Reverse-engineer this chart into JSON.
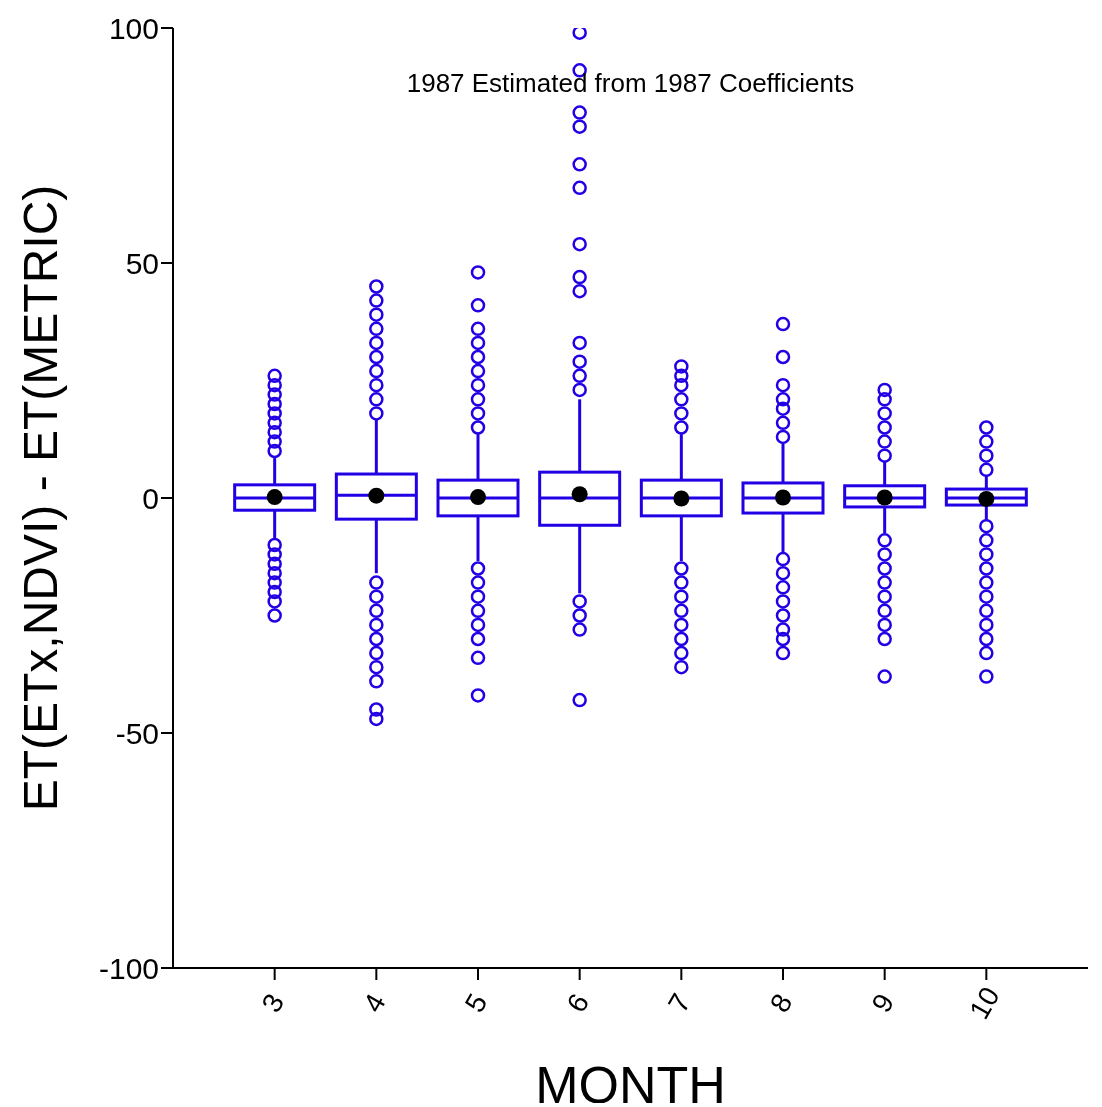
{
  "chart_data": {
    "type": "box",
    "xlabel": "MONTH",
    "ylabel": "ET(ETx,NDVI) - ET(METRIC)",
    "annotations": [
      "1987 Estimated from 1987 Coefficients"
    ],
    "categories": [
      "3",
      "4",
      "5",
      "6",
      "7",
      "8",
      "9",
      "10"
    ],
    "ylim": [
      -100,
      100
    ],
    "yticks": [
      -100,
      -50,
      0,
      50,
      100
    ],
    "marker": "circle",
    "series": [
      {
        "color": "#2200e6",
        "boxes": [
          {
            "low": -8.5,
            "q1": -2.6,
            "median": 0,
            "q3": 2.8,
            "high": 8.5,
            "mean": 0.2,
            "outliers": [
              10,
              12,
              14,
              16,
              18,
              20,
              22,
              24,
              26,
              -10,
              -12,
              -14,
              -16,
              -18,
              -20,
              -22,
              -25
            ]
          },
          {
            "low": -16,
            "q1": -4.5,
            "median": 0.6,
            "q3": 5.1,
            "high": 16.8,
            "mean": 0.5,
            "outliers": [
              18,
              21,
              24,
              27,
              30,
              33,
              36,
              39,
              42,
              45,
              -18,
              -21,
              -24,
              -27,
              -30,
              -33,
              -36,
              -39,
              -45,
              -47
            ]
          },
          {
            "low": -13.4,
            "q1": -3.8,
            "median": 0,
            "q3": 3.8,
            "high": 13.6,
            "mean": 0.2,
            "outliers": [
              15,
              18,
              21,
              24,
              27,
              30,
              33,
              36,
              41,
              48,
              -15,
              -18,
              -21,
              -24,
              -27,
              -30,
              -34,
              -42
            ]
          },
          {
            "low": -20.3,
            "q1": -5.8,
            "median": 0,
            "q3": 5.5,
            "high": 21,
            "mean": 0.8,
            "outliers": [
              23,
              26,
              29,
              33,
              44,
              47,
              54,
              66,
              71,
              79,
              82,
              91,
              99,
              -22,
              -25,
              -28,
              -43
            ]
          },
          {
            "low": -13.4,
            "q1": -3.8,
            "median": 0,
            "q3": 3.8,
            "high": 13.6,
            "mean": -0.1,
            "outliers": [
              15,
              18,
              21,
              24,
              26,
              28,
              -15,
              -18,
              -21,
              -24,
              -27,
              -30,
              -33,
              -36
            ]
          },
          {
            "low": -11.7,
            "q1": -3.2,
            "median": 0,
            "q3": 3.2,
            "high": 11.5,
            "mean": 0.1,
            "outliers": [
              13,
              16,
              19,
              21,
              24,
              30,
              37,
              -13,
              -16,
              -19,
              -22,
              -25,
              -28,
              -30,
              -33
            ]
          },
          {
            "low": -7.5,
            "q1": -1.9,
            "median": 0,
            "q3": 2.6,
            "high": 7.9,
            "mean": 0.1,
            "outliers": [
              9,
              12,
              15,
              18,
              21,
              23,
              -9,
              -12,
              -15,
              -18,
              -21,
              -24,
              -27,
              -30,
              -38
            ]
          },
          {
            "low": -4.9,
            "q1": -1.5,
            "median": 0,
            "q3": 1.9,
            "high": 4.7,
            "mean": -0.2,
            "outliers": [
              6,
              9,
              12,
              15,
              -6,
              -9,
              -12,
              -15,
              -18,
              -21,
              -24,
              -27,
              -30,
              -33,
              -38
            ]
          }
        ]
      }
    ]
  }
}
